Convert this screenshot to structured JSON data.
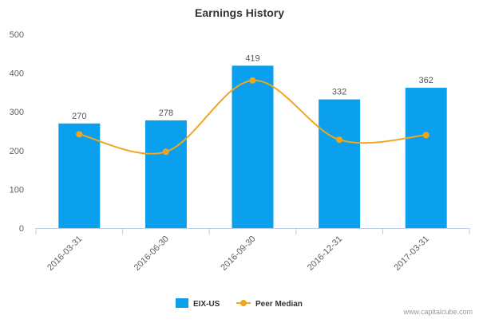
{
  "chart_data": {
    "type": "bar",
    "title": "Earnings History",
    "categories": [
      "2016-03-31",
      "2016-06-30",
      "2016-09-30",
      "2016-12-31",
      "2017-03-31"
    ],
    "ylim": [
      0,
      500
    ],
    "yticks": [
      0,
      100,
      200,
      300,
      400,
      500
    ],
    "grid": false,
    "legend_position": "bottom",
    "series": [
      {
        "name": "EIX-US",
        "type": "bar",
        "color": "#0aa0ee",
        "values": [
          270,
          278,
          419,
          332,
          362
        ],
        "labels_shown": true
      },
      {
        "name": "Peer Median",
        "type": "line",
        "smooth": true,
        "color": "#f3a51b",
        "values": [
          242,
          197,
          381,
          228,
          240
        ]
      }
    ]
  },
  "watermark": "www.capitalcube.com"
}
